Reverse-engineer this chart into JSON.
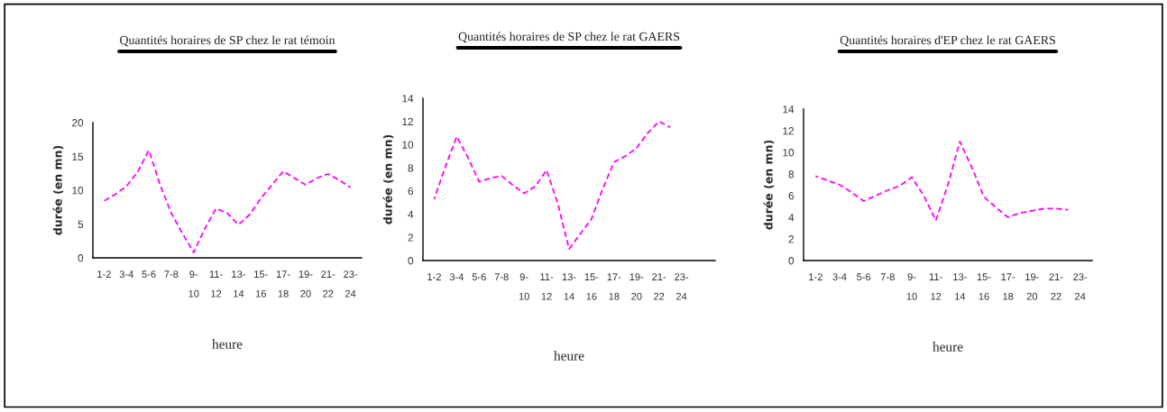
{
  "chart_data": [
    {
      "type": "line",
      "title": "Quantités horaires de SP chez le rat témoin",
      "xlabel": "heure",
      "ylabel": "durée (en mn)",
      "categories": [
        "1-2",
        null,
        "3-4",
        null,
        "5-6",
        null,
        "7-8",
        null,
        "9-\n10",
        null,
        "11-\n12",
        null,
        "13-\n14",
        null,
        "15-\n16",
        null,
        "17-\n18",
        null,
        "19-\n20",
        null,
        "21-\n22",
        null,
        "23-\n24",
        null
      ],
      "series": [
        {
          "color": "#ff00ff",
          "values": [
            8.4,
            9.4,
            10.6,
            12.7,
            15.9,
            10.8,
            6.6,
            3.6,
            0.8,
            4.3,
            7.3,
            6.6,
            4.9,
            6.4,
            8.8,
            10.8,
            12.8,
            11.8,
            10.8,
            11.8,
            12.4,
            11.5,
            10.4,
            null
          ]
        }
      ],
      "ylim": [
        0,
        20
      ],
      "yticks": [
        0,
        5,
        10,
        15,
        20
      ],
      "line_style": "dashed",
      "marker": "none",
      "grid": false,
      "legend": false
    },
    {
      "type": "line",
      "title": "Quantités horaires de SP chez le rat GAERS",
      "xlabel": "heure",
      "ylabel": "durée (en mn)",
      "categories": [
        "1-2",
        null,
        "3-4",
        null,
        "5-6",
        null,
        "7-8",
        null,
        "9-\n10",
        null,
        "11-\n12",
        null,
        "13-\n14",
        null,
        "15-\n16",
        null,
        "17-\n18",
        null,
        "19-\n20",
        null,
        "21-\n22",
        null,
        "23-\n24",
        null,
        null,
        null
      ],
      "series": [
        {
          "color": "#ff00ff",
          "values": [
            5.3,
            8.1,
            10.7,
            8.9,
            6.8,
            7.1,
            7.3,
            6.5,
            5.8,
            6.4,
            7.8,
            4.9,
            1.0,
            2.3,
            3.6,
            6.2,
            8.5,
            9.0,
            9.7,
            11.0,
            12.0,
            11.5,
            null,
            null,
            null,
            null
          ]
        }
      ],
      "ylim": [
        0,
        14
      ],
      "yticks": [
        0,
        2,
        4,
        6,
        8,
        10,
        12,
        14
      ],
      "line_style": "dashed",
      "marker": "none",
      "grid": false,
      "legend": false
    },
    {
      "type": "line",
      "title": "Quantités horaires d'EP chez le rat GAERS",
      "xlabel": "heure",
      "ylabel": "durée (en mn)",
      "categories": [
        "1-2",
        null,
        "3-4",
        null,
        "5-6",
        null,
        "7-8",
        null,
        "9-\n10",
        null,
        "11-\n12",
        null,
        "13-\n14",
        null,
        "15-\n16",
        null,
        "17-\n18",
        null,
        "19-\n20",
        null,
        "21-\n22",
        null,
        "23-\n24",
        null
      ],
      "series": [
        {
          "color": "#ff00ff",
          "values": [
            7.8,
            7.4,
            7.0,
            6.3,
            5.5,
            6.0,
            6.5,
            6.9,
            7.7,
            6.0,
            3.7,
            7.0,
            11.0,
            8.6,
            5.9,
            4.9,
            4.0,
            4.4,
            4.6,
            4.8,
            4.8,
            4.7,
            null,
            null
          ]
        }
      ],
      "ylim": [
        0,
        14
      ],
      "yticks": [
        0,
        2,
        4,
        6,
        8,
        10,
        12,
        14
      ],
      "line_style": "dashed",
      "marker": "none",
      "grid": false,
      "legend": false
    }
  ]
}
